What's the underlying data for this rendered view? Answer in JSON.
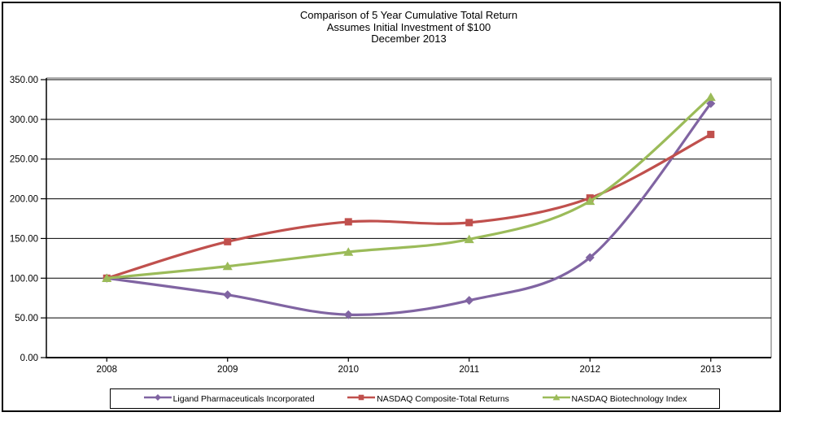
{
  "chart_data": {
    "type": "line",
    "title": "Comparison of 5 Year Cumulative Total Return",
    "subtitle": "Assumes Initial Investment of $100",
    "subtitle2": "December 2013",
    "categories": [
      "2008",
      "2009",
      "2010",
      "2011",
      "2012",
      "2013"
    ],
    "series": [
      {
        "name": "Ligand Pharmaceuticals Incorporated",
        "color": "#8064A2",
        "marker": "diamond",
        "values": [
          100,
          79,
          54,
          72,
          126,
          320
        ]
      },
      {
        "name": "NASDAQ Composite-Total Returns",
        "color": "#C0504D",
        "marker": "square",
        "values": [
          100,
          146,
          171,
          170,
          201,
          281
        ]
      },
      {
        "name": "NASDAQ Biotechnology Index",
        "color": "#9BBB59",
        "marker": "triangle",
        "values": [
          100,
          115,
          133,
          149,
          197,
          328
        ]
      }
    ],
    "ylim": [
      0,
      350
    ],
    "ytick_step": 50,
    "ytick_labels": [
      "0.00",
      "50.00",
      "100.00",
      "150.00",
      "200.00",
      "250.00",
      "300.00",
      "350.00"
    ],
    "xlabel": "",
    "ylabel": "",
    "grid": true,
    "line_smooth": true,
    "legend_position": "bottom"
  },
  "colors": {
    "gridline": "#000000",
    "axis": "#000000",
    "plot_border": "#808080",
    "frame_border": "#000000",
    "background": "#FFFFFF"
  }
}
